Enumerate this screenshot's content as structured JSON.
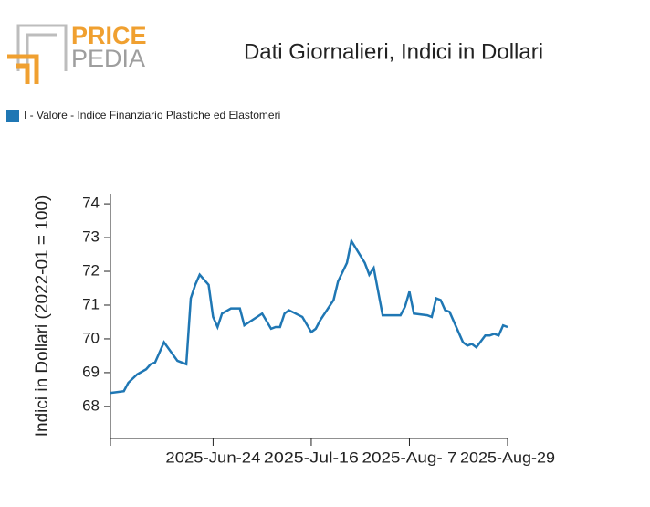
{
  "logo": {
    "line1": "PRICE",
    "line2": "PEDIA"
  },
  "chart_data": {
    "type": "line",
    "title": "Dati Giornalieri, Indici in Dollari",
    "ylabel": "Indici in Dollari (2022-01 = 100)",
    "ylim": [
      67.05,
      74.3
    ],
    "yticks": [
      68,
      69,
      70,
      71,
      72,
      73,
      74
    ],
    "xlim": [
      "2025-06-01",
      "2025-08-29"
    ],
    "xticks": [
      {
        "value": "2025-06-24",
        "label": "2025-Jun-24"
      },
      {
        "value": "2025-07-16",
        "label": "2025-Jul-16"
      },
      {
        "value": "2025-08-07",
        "label": "2025-Aug- 7"
      },
      {
        "value": "2025-08-29",
        "label": "2025-Aug-29"
      }
    ],
    "x": [
      "2025-06-01",
      "2025-06-04",
      "2025-06-05",
      "2025-06-07",
      "2025-06-09",
      "2025-06-10",
      "2025-06-11",
      "2025-06-13",
      "2025-06-16",
      "2025-06-18",
      "2025-06-19",
      "2025-06-20",
      "2025-06-21",
      "2025-06-23",
      "2025-06-24",
      "2025-06-25",
      "2025-06-26",
      "2025-06-28",
      "2025-06-30",
      "2025-07-01",
      "2025-07-05",
      "2025-07-07",
      "2025-07-08",
      "2025-07-09",
      "2025-07-10",
      "2025-07-11",
      "2025-07-14",
      "2025-07-16",
      "2025-07-17",
      "2025-07-18",
      "2025-07-21",
      "2025-07-22",
      "2025-07-24",
      "2025-07-25",
      "2025-07-28",
      "2025-07-29",
      "2025-07-30",
      "2025-08-01",
      "2025-08-04",
      "2025-08-05",
      "2025-08-06",
      "2025-08-07",
      "2025-08-08",
      "2025-08-11",
      "2025-08-12",
      "2025-08-13",
      "2025-08-14",
      "2025-08-15",
      "2025-08-16",
      "2025-08-17",
      "2025-08-18",
      "2025-08-19",
      "2025-08-20",
      "2025-08-21",
      "2025-08-22",
      "2025-08-24",
      "2025-08-25",
      "2025-08-26",
      "2025-08-27",
      "2025-08-28",
      "2025-08-29"
    ],
    "series": [
      {
        "name": "I - Valore - Indice Finanziario Plastiche ed Elastomeri",
        "color": "#1f77b4",
        "values": [
          68.4,
          68.45,
          68.7,
          68.95,
          69.1,
          69.25,
          69.3,
          69.9,
          69.35,
          69.25,
          71.2,
          71.6,
          71.9,
          71.6,
          70.65,
          70.35,
          70.75,
          70.9,
          70.9,
          70.4,
          70.75,
          70.3,
          70.35,
          70.35,
          70.75,
          70.85,
          70.65,
          70.2,
          70.3,
          70.55,
          71.15,
          71.7,
          72.25,
          72.9,
          72.25,
          71.9,
          72.1,
          70.7,
          70.7,
          70.7,
          70.95,
          71.4,
          70.75,
          70.7,
          70.65,
          71.2,
          71.15,
          70.85,
          70.8,
          70.5,
          70.2,
          69.9,
          69.8,
          69.85,
          69.75,
          70.1,
          70.1,
          70.15,
          70.1,
          70.4,
          70.35
        ]
      }
    ]
  }
}
